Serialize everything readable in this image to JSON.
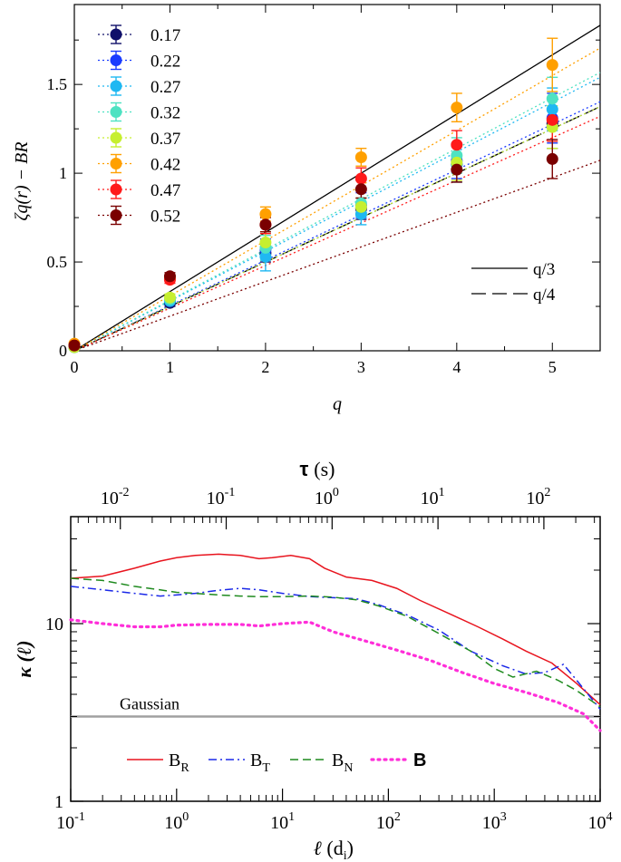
{
  "chart_data": [
    {
      "type": "scatter",
      "title": "",
      "xlabel": "q",
      "ylabel": "ζq(r) − BR",
      "xlim": [
        0,
        5.5
      ],
      "ylim": [
        0,
        1.95
      ],
      "x_ticks": [
        0,
        1,
        2,
        3,
        4,
        5
      ],
      "x_tick_labels": [
        "0",
        "1",
        "2",
        "3",
        "4",
        "5"
      ],
      "y_ticks": [
        0,
        0.5,
        1,
        1.5
      ],
      "y_tick_labels": [
        "0",
        "0.5",
        "1",
        "1.5"
      ],
      "legend_position": "top-left",
      "x": [
        0,
        1,
        2,
        3,
        4,
        5
      ],
      "series": [
        {
          "name": "0.17",
          "color": "#10106a",
          "values": [
            0.02,
            0.27,
            0.55,
            0.8,
            1.05,
            1.28
          ],
          "errors": [
            0.01,
            0.02,
            0.05,
            0.06,
            0.1,
            0.14
          ],
          "fit_slope": 0.25
        },
        {
          "name": "0.22",
          "color": "#1a3cff",
          "values": [
            0.02,
            0.28,
            0.57,
            0.82,
            1.07,
            1.31
          ],
          "errors": [
            0.01,
            0.02,
            0.06,
            0.07,
            0.1,
            0.14
          ],
          "fit_slope": 0.255
        },
        {
          "name": "0.27",
          "color": "#1fb8f2",
          "values": [
            0.02,
            0.28,
            0.53,
            0.77,
            1.05,
            1.36
          ],
          "errors": [
            0.01,
            0.02,
            0.08,
            0.06,
            0.1,
            0.12
          ],
          "fit_slope": 0.28
        },
        {
          "name": "0.32",
          "color": "#4ee2c2",
          "values": [
            0.02,
            0.29,
            0.58,
            0.83,
            1.1,
            1.42
          ],
          "errors": [
            0.01,
            0.02,
            0.07,
            0.07,
            0.1,
            0.12
          ],
          "fit_slope": 0.285
        },
        {
          "name": "0.37",
          "color": "#c6ef30",
          "values": [
            0.02,
            0.3,
            0.61,
            0.81,
            1.06,
            1.26
          ],
          "errors": [
            0.01,
            0.02,
            0.06,
            0.05,
            0.1,
            0.12
          ],
          "fit_slope": 0.25
        },
        {
          "name": "0.42",
          "color": "#ffa000",
          "values": [
            0.04,
            0.41,
            0.77,
            1.09,
            1.37,
            1.61
          ],
          "errors": [
            0.01,
            0.02,
            0.04,
            0.05,
            0.08,
            0.15
          ],
          "fit_slope": 0.31
        },
        {
          "name": "0.47",
          "color": "#ff1a1a",
          "values": [
            0.03,
            0.4,
            0.71,
            0.97,
            1.16,
            1.3
          ],
          "errors": [
            0.01,
            0.02,
            0.05,
            0.06,
            0.08,
            0.12
          ],
          "fit_slope": 0.24
        },
        {
          "name": "0.52",
          "color": "#7a0000",
          "values": [
            0.03,
            0.42,
            0.71,
            0.91,
            1.02,
            1.08
          ],
          "errors": [
            0.01,
            0.02,
            0.04,
            0.05,
            0.07,
            0.11
          ],
          "fit_slope": 0.195
        }
      ],
      "reference_lines": [
        {
          "name": "q/3",
          "slope": 0.3333,
          "style": "solid"
        },
        {
          "name": "q/4",
          "slope": 0.25,
          "style": "dashed"
        }
      ]
    },
    {
      "type": "line",
      "title": "",
      "xscale": "log",
      "yscale": "log",
      "xlabel": "ℓ",
      "xlabel_unit": "(d",
      "xlabel_unit_sub": "i",
      "xlabel_unit_close": ")",
      "ylabel": "κ (ℓ)",
      "top_xlabel": "τ",
      "top_xlabel_unit": "(s)",
      "xlim": [
        0.1,
        10000
      ],
      "ylim": [
        1,
        40
      ],
      "x_ticks": [
        0.1,
        1,
        10,
        100,
        1000,
        10000
      ],
      "x_tick_bases": [
        "10",
        "10",
        "10",
        "10",
        "10",
        "10"
      ],
      "x_tick_exps": [
        "-1",
        "0",
        "1",
        "2",
        "3",
        "4"
      ],
      "y_ticks": [
        1,
        10
      ],
      "y_tick_labels": [
        "1",
        "10"
      ],
      "top_x_ticks": [
        0.01,
        0.1,
        1,
        10,
        100
      ],
      "top_x_tick_bases": [
        "10",
        "10",
        "10",
        "10",
        "10"
      ],
      "top_x_tick_exps": [
        "-2",
        "-1",
        "0",
        "1",
        "2"
      ],
      "top_xlim": [
        0.0034,
        340
      ],
      "legend_position": "bottom",
      "gaussian": {
        "value": 3,
        "label": "Gaussian",
        "color": "#a0a0a0"
      },
      "series": [
        {
          "name": "B",
          "sub": "R",
          "color": "#e8141e",
          "style": "solid",
          "x": [
            0.1,
            0.2,
            0.4,
            0.7,
            1,
            1.5,
            2.5,
            4,
            6,
            8,
            12,
            18,
            25,
            40,
            70,
            120,
            200,
            400,
            700,
            1200,
            2000,
            3500,
            6000,
            10000
          ],
          "values": [
            18,
            18.5,
            20.5,
            22.5,
            23.5,
            24.2,
            24.6,
            24.2,
            23.2,
            23.5,
            24.2,
            23.2,
            20.5,
            18.3,
            17.5,
            15.8,
            13.5,
            11.2,
            9.6,
            8.2,
            7.0,
            6.0,
            4.6,
            3.5
          ]
        },
        {
          "name": "B",
          "sub": "T",
          "color": "#1a28e8",
          "style": "dashdot",
          "x": [
            0.1,
            0.2,
            0.4,
            0.7,
            1,
            1.5,
            2.5,
            4,
            6,
            10,
            18,
            30,
            50,
            80,
            150,
            300,
            600,
            1200,
            2000,
            3000,
            4500,
            6000,
            10000
          ],
          "values": [
            16.2,
            15.5,
            14.8,
            14.3,
            14.5,
            14.8,
            15.4,
            15.8,
            15.5,
            14.8,
            14.2,
            14.0,
            13.8,
            12.8,
            11.2,
            9.2,
            7.0,
            5.8,
            5.2,
            5.3,
            5.9,
            4.8,
            3.3
          ]
        },
        {
          "name": "B",
          "sub": "N",
          "color": "#1e8a1e",
          "style": "dashed",
          "x": [
            0.1,
            0.2,
            0.4,
            0.7,
            1,
            1.5,
            2.5,
            4,
            6,
            10,
            18,
            30,
            50,
            80,
            150,
            300,
            600,
            1000,
            1500,
            2500,
            4000,
            6000,
            10000
          ],
          "values": [
            18,
            17.5,
            16.2,
            15.5,
            15,
            14.8,
            14.5,
            14.3,
            14.2,
            14.2,
            14.3,
            14.1,
            13.6,
            12.6,
            11.0,
            8.8,
            7.0,
            5.6,
            5.0,
            5.4,
            4.8,
            4.2,
            3.4
          ]
        },
        {
          "name": "B",
          "sub": "",
          "color": "#ff2ed9",
          "style": "dotted",
          "bold": true,
          "x": [
            0.1,
            0.2,
            0.4,
            0.7,
            1,
            2,
            4,
            6,
            10,
            18,
            30,
            60,
            120,
            250,
            500,
            1000,
            2000,
            4000,
            7000,
            10000
          ],
          "values": [
            10.5,
            10.0,
            9.6,
            9.6,
            9.8,
            9.9,
            9.9,
            9.7,
            10.0,
            10.2,
            9.0,
            8.0,
            7.1,
            6.2,
            5.3,
            4.6,
            4.1,
            3.6,
            3.1,
            2.5
          ]
        }
      ]
    }
  ]
}
